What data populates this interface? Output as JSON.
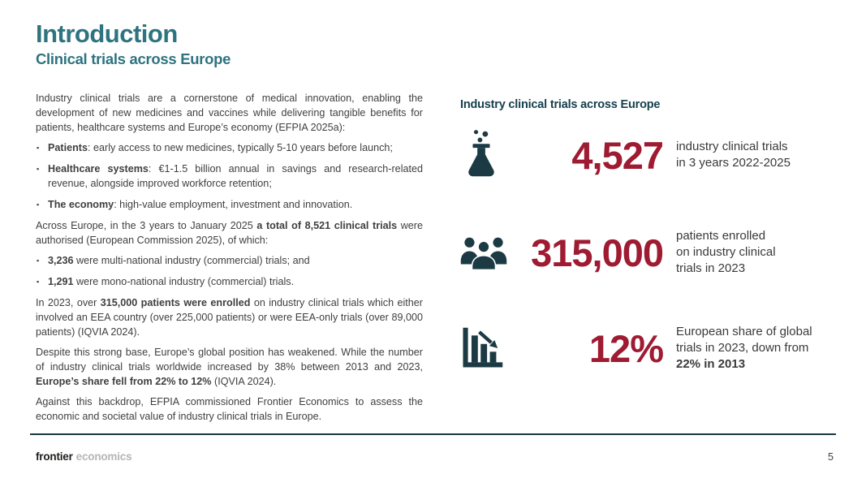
{
  "page": {
    "title": "Introduction",
    "subtitle": "Clinical trials across Europe",
    "page_number": "5"
  },
  "body": {
    "blocks": [
      {
        "type": "p",
        "segments": [
          {
            "t": "Industry clinical trials are a cornerstone of medical innovation, enabling the development of new medicines and vaccines while delivering tangible benefits for patients, healthcare systems and Europe’s economy (EFPIA 2025a):"
          }
        ]
      },
      {
        "type": "bullets",
        "items": [
          [
            {
              "t": "Patients",
              "b": true
            },
            {
              "t": ": early access to new medicines, typically 5-10 years before launch;"
            }
          ],
          [
            {
              "t": "Healthcare systems",
              "b": true
            },
            {
              "t": ": €1-1.5 billion annual in savings and research-related revenue, alongside improved workforce retention;"
            }
          ],
          [
            {
              "t": "The economy",
              "b": true
            },
            {
              "t": ": high-value employment, investment and innovation."
            }
          ]
        ]
      },
      {
        "type": "p",
        "segments": [
          {
            "t": "Across Europe, in the 3 years to January 2025 "
          },
          {
            "t": "a total of 8,521 clinical trials",
            "b": true
          },
          {
            "t": " were authorised (European Commission 2025), of which:"
          }
        ]
      },
      {
        "type": "bullets",
        "items": [
          [
            {
              "t": "3,236",
              "b": true
            },
            {
              "t": " were multi-national industry (commercial) trials; and"
            }
          ],
          [
            {
              "t": "1,291",
              "b": true
            },
            {
              "t": " were mono-national industry (commercial) trials."
            }
          ]
        ]
      },
      {
        "type": "p",
        "segments": [
          {
            "t": "In 2023, over "
          },
          {
            "t": "315,000 patients were enrolled",
            "b": true
          },
          {
            "t": " on industry clinical trials which either involved an EEA country (over 225,000 patients) or were EEA-only trials (over 89,000 patients) (IQVIA 2024)."
          }
        ]
      },
      {
        "type": "p",
        "segments": [
          {
            "t": "Despite this strong base, Europe’s global position has weakened. While the number of industry clinical trials worldwide increased by 38% between 2013 and 2023, "
          },
          {
            "t": "Europe’s share fell from 22% to 12%",
            "b": true
          },
          {
            "t": " (IQVIA 2024)."
          }
        ]
      },
      {
        "type": "p",
        "segments": [
          {
            "t": "Against this backdrop, EFPIA commissioned Frontier Economics to assess the economic and societal value of industry clinical trials in Europe."
          }
        ]
      }
    ]
  },
  "stats_panel": {
    "heading": "Industry clinical trials across Europe",
    "stats": [
      {
        "icon": "flask-icon",
        "value": "4,527",
        "label": [
          [
            {
              "t": "industry clinical trials"
            }
          ],
          [
            {
              "t": "in 3 years 2022-2025"
            }
          ]
        ]
      },
      {
        "icon": "people-icon",
        "value": "315,000",
        "label": [
          [
            {
              "t": "patients enrolled"
            }
          ],
          [
            {
              "t": "on industry clinical"
            }
          ],
          [
            {
              "t": "trials in 2023"
            }
          ]
        ]
      },
      {
        "icon": "declining-bar-chart-icon",
        "value": "12%",
        "label": [
          [
            {
              "t": "European share of global"
            }
          ],
          [
            {
              "t": "trials in 2023, down from"
            }
          ],
          [
            {
              "t": "22% in 2013",
              "b": true
            }
          ]
        ]
      }
    ]
  },
  "footer": {
    "brand_primary": "frontier",
    "brand_secondary": "economics"
  },
  "colors": {
    "heading_teal": "#2E7380",
    "stats_heading_teal": "#16414E",
    "icon_dark_teal": "#1C3A44",
    "stat_value_crimson": "#9E1B32",
    "body_text": "#3F3F3F",
    "footer_line": "#1C3640",
    "brand_secondary_gray": "#B5B5B5"
  },
  "bullet_glyph": "▪"
}
